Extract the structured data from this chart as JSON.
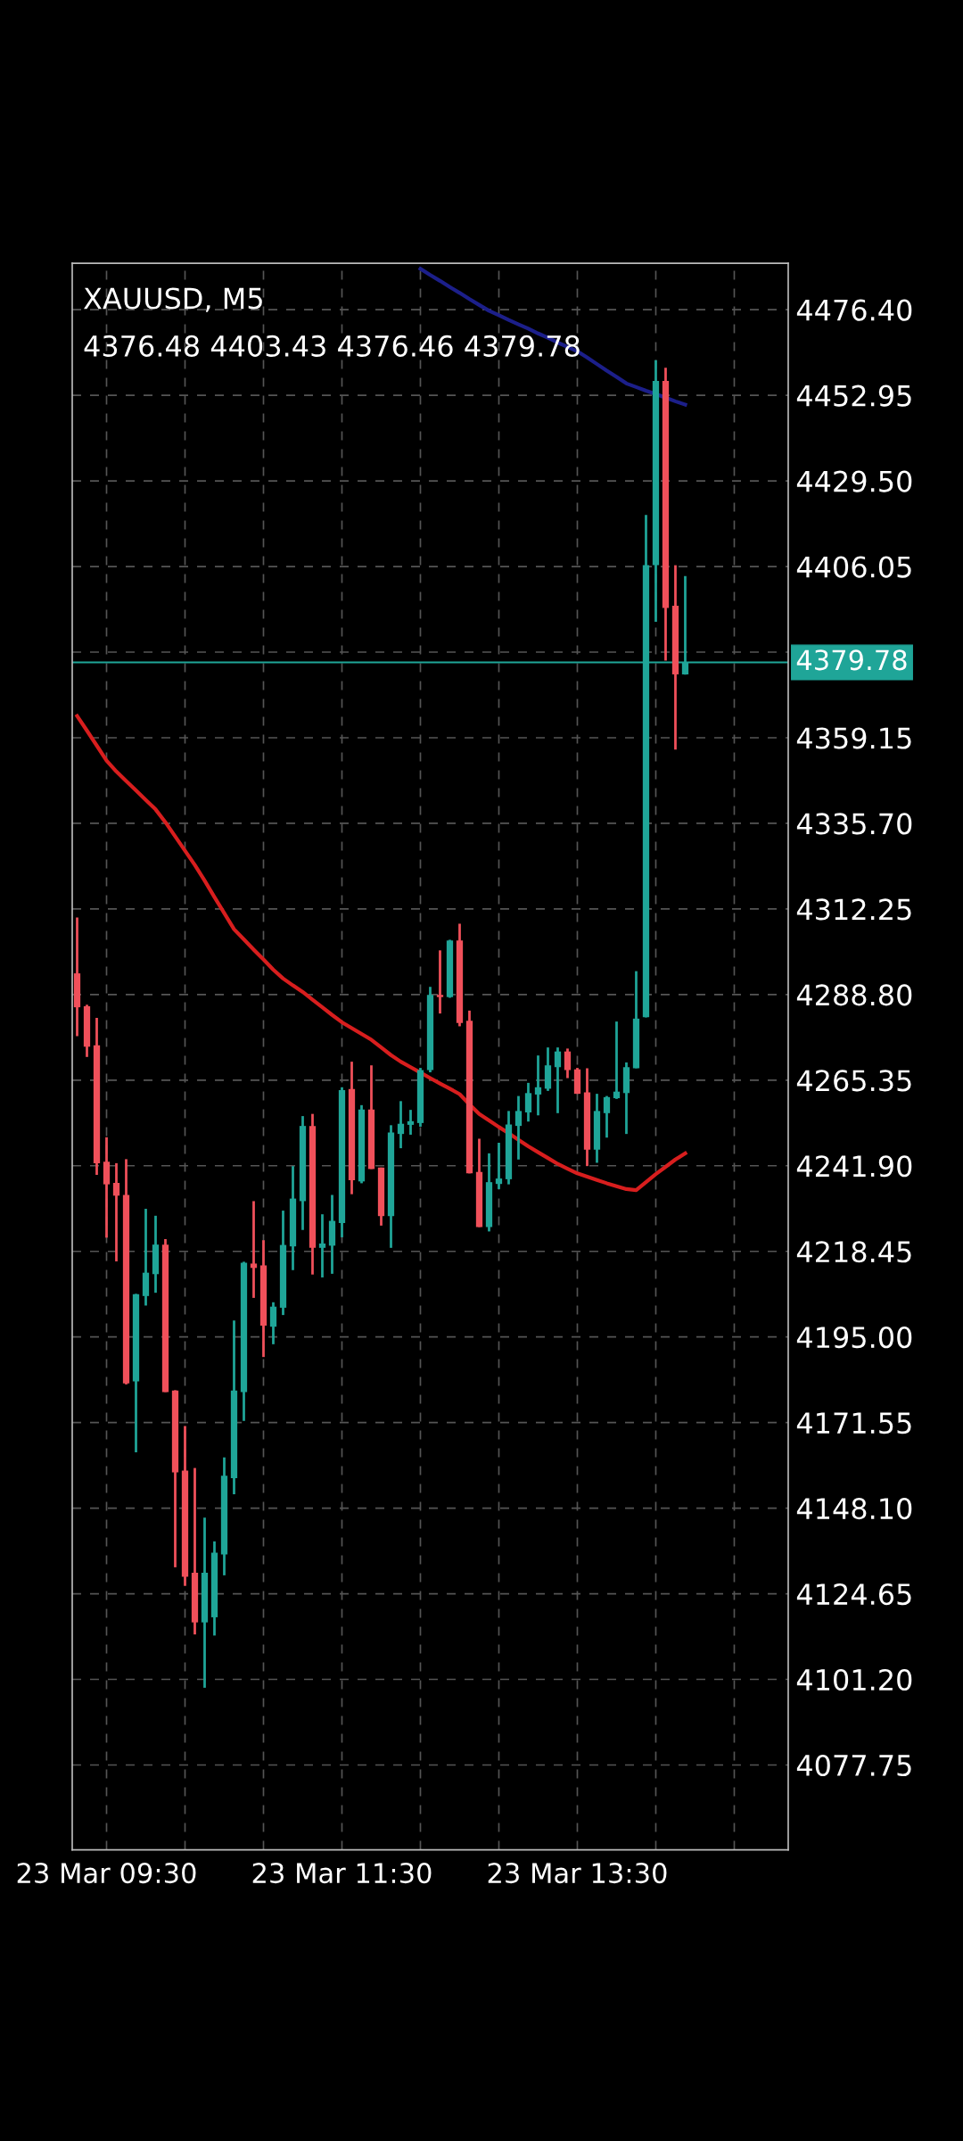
{
  "chart_data": {
    "type": "candlestick",
    "title": "XAUUSD, M5",
    "subtitle": "4376.48 4403.43 4376.46 4379.78",
    "categories": [
      null,
      null,
      null,
      "23 Mar 09:30",
      null,
      null,
      null,
      null,
      null,
      null,
      null,
      null,
      null,
      null,
      null,
      null,
      null,
      null,
      null,
      null,
      null,
      null,
      null,
      null,
      null,
      null,
      null,
      "23 Mar 11:30",
      null,
      null,
      null,
      null,
      null,
      null,
      null,
      null,
      null,
      null,
      null,
      null,
      null,
      null,
      null,
      null,
      null,
      null,
      null,
      null,
      null,
      null,
      null,
      "23 Mar 13:30",
      null,
      null,
      null,
      null,
      null,
      null,
      null,
      null,
      null,
      null,
      null,
      null,
      null,
      null,
      null,
      null,
      null,
      null,
      null,
      null,
      null
    ],
    "ohlc": [
      [
        4294.6,
        4309.9,
        4277.4,
        4285.3
      ],
      [
        4285.6,
        4286.0,
        4271.7,
        4274.5
      ],
      [
        4274.9,
        4282.4,
        4239.4,
        4242.6
      ],
      [
        4243.0,
        4249.7,
        4222.2,
        4236.8
      ],
      [
        4237.2,
        4242.6,
        4215.7,
        4233.7
      ],
      [
        4233.9,
        4243.7,
        4182.0,
        4182.3
      ],
      [
        4182.8,
        4206.8,
        4163.4,
        4206.7
      ],
      [
        4206.2,
        4230.1,
        4203.6,
        4212.6
      ],
      [
        4212.2,
        4228.2,
        4207.1,
        4220.3
      ],
      [
        4220.3,
        4221.8,
        4179.9,
        4179.9
      ],
      [
        4180.3,
        4180.4,
        4131.9,
        4157.9
      ],
      [
        4158.4,
        4170.6,
        4126.8,
        4129.3
      ],
      [
        4130.4,
        4159.1,
        4113.5,
        4116.8
      ],
      [
        4116.8,
        4145.5,
        4098.9,
        4130.4
      ],
      [
        4118.2,
        4139.0,
        4113.2,
        4135.9
      ],
      [
        4135.4,
        4162.0,
        4129.7,
        4157.0
      ],
      [
        4156.3,
        4199.5,
        4151.9,
        4180.3
      ],
      [
        4179.9,
        4215.6,
        4172.0,
        4215.3
      ],
      [
        4215.1,
        4232.2,
        4205.7,
        4213.9
      ],
      [
        4214.6,
        4221.5,
        4189.5,
        4198.1
      ],
      [
        4197.8,
        4204.5,
        4193.0,
        4203.3
      ],
      [
        4203.0,
        4229.6,
        4201.0,
        4220.2
      ],
      [
        4219.8,
        4241.8,
        4213.3,
        4232.9
      ],
      [
        4232.2,
        4255.5,
        4224.3,
        4252.8
      ],
      [
        4252.8,
        4256.1,
        4212.1,
        4219.4
      ],
      [
        4219.4,
        4228.6,
        4211.3,
        4220.6
      ],
      [
        4220.0,
        4233.9,
        4212.3,
        4226.8
      ],
      [
        4226.2,
        4263.4,
        4222.3,
        4262.6
      ],
      [
        4262.9,
        4270.4,
        4234.1,
        4237.9
      ],
      [
        4237.6,
        4258.5,
        4237.1,
        4257.3
      ],
      [
        4257.3,
        4269.4,
        4241.0,
        4241.0
      ],
      [
        4241.4,
        4241.4,
        4225.5,
        4228.1
      ],
      [
        4228.1,
        4253.0,
        4219.4,
        4251.0
      ],
      [
        4250.6,
        4259.6,
        4246.7,
        4253.4
      ],
      [
        4253.1,
        4257.2,
        4250.4,
        4254.1
      ],
      [
        4253.6,
        4268.7,
        4252.6,
        4268.1
      ],
      [
        4268.1,
        4290.9,
        4267.5,
        4288.7
      ],
      [
        4288.7,
        4300.9,
        4283.6,
        4288.1
      ],
      [
        4288.1,
        4303.8,
        4287.9,
        4303.6
      ],
      [
        4303.6,
        4308.2,
        4280.1,
        4281.0
      ],
      [
        4281.6,
        4284.4,
        4239.8,
        4239.8
      ],
      [
        4240.2,
        4249.3,
        4225.1,
        4225.1
      ],
      [
        4225.1,
        4245.3,
        4223.9,
        4237.4
      ],
      [
        4236.9,
        4248.2,
        4235.5,
        4238.4
      ],
      [
        4238.2,
        4256.9,
        4236.8,
        4253.2
      ],
      [
        4252.8,
        4261.0,
        4243.6,
        4256.9
      ],
      [
        4256.5,
        4264.6,
        4254.0,
        4261.8
      ],
      [
        4261.4,
        4272.1,
        4255.7,
        4263.4
      ],
      [
        4263.0,
        4274.3,
        4262.4,
        4269.4
      ],
      [
        4268.9,
        4274.3,
        4256.3,
        4273.2
      ],
      [
        4273.2,
        4274.0,
        4265.9,
        4268.1
      ],
      [
        4268.3,
        4268.7,
        4261.6,
        4261.6
      ],
      [
        4262.0,
        4268.6,
        4241.8,
        4246.3
      ],
      [
        4246.3,
        4261.6,
        4242.7,
        4256.9
      ],
      [
        4256.3,
        4261.0,
        4249.6,
        4260.7
      ],
      [
        4260.4,
        4281.4,
        4260.2,
        4262.2
      ],
      [
        4261.8,
        4270.2,
        4250.6,
        4268.9
      ],
      [
        4268.6,
        4295.2,
        4268.6,
        4282.2
      ],
      [
        4282.6,
        4420.2,
        4282.5,
        4406.4
      ],
      [
        4406.4,
        4462.6,
        4390.9,
        4456.9
      ],
      [
        4456.9,
        4460.5,
        4380.3,
        4394.7
      ],
      [
        4395.3,
        4406.4,
        4355.9,
        4376.5
      ],
      [
        4376.48,
        4403.43,
        4376.46,
        4379.78
      ],
      null,
      null,
      null,
      null,
      null,
      null,
      null,
      null,
      null,
      null
    ],
    "colors": [
      "#f0505a",
      "#f0505a",
      "#f0505a",
      "#f0505a",
      "#f0505a",
      "#f0505a",
      "#1fa598",
      "#1fa598",
      "#1fa598",
      "#f0505a",
      "#f0505a",
      "#f0505a",
      "#f0505a",
      "#1fa598",
      "#1fa598",
      "#1fa598",
      "#1fa598",
      "#1fa598",
      "#f0505a",
      "#f0505a",
      "#1fa598",
      "#1fa598",
      "#1fa598",
      "#1fa598",
      "#f0505a",
      "#1fa598",
      "#1fa598",
      "#1fa598",
      "#f0505a",
      "#1fa598",
      "#f0505a",
      "#f0505a",
      "#1fa598",
      "#1fa598",
      "#1fa598",
      "#1fa598",
      "#1fa598",
      "#f0505a",
      "#1fa598",
      "#f0505a",
      "#f0505a",
      "#f0505a",
      "#1fa598",
      "#1fa598",
      "#1fa598",
      "#1fa598",
      "#1fa598",
      "#1fa598",
      "#1fa598",
      "#1fa598",
      "#f0505a",
      "#f0505a",
      "#f0505a",
      "#1fa598",
      "#1fa598",
      "#1fa598",
      "#1fa598",
      "#1fa598",
      "#1fa598",
      "#1fa598",
      "#f0505a",
      "#f0505a",
      "#1fa598",
      null,
      null,
      null,
      null,
      null,
      null,
      null,
      null,
      null,
      null
    ],
    "series": [
      {
        "type": "line",
        "color": "#d81e1e",
        "values": [
          4365.1,
          4361.1,
          4357.0,
          4352.9,
          4349.9,
          4347.3,
          4344.7,
          4342.1,
          4339.5,
          4336.0,
          4332.1,
          4328.2,
          4324.3,
          4320.0,
          4315.5,
          4311.1,
          4306.7,
          4303.9,
          4301.1,
          4298.4,
          4295.6,
          4293.2,
          4291.3,
          4289.5,
          4287.4,
          4285.3,
          4283.2,
          4281.2,
          4279.6,
          4278.0,
          4276.4,
          4274.3,
          4272.2,
          4270.4,
          4268.9,
          4267.4,
          4265.9,
          4264.4,
          4263.0,
          4261.5,
          4258.7,
          4256.1,
          4254.3,
          4252.5,
          4250.8,
          4249.0,
          4247.2,
          4245.6,
          4244.0,
          4242.4,
          4241.1,
          4239.8,
          4238.9,
          4238.0,
          4237.1,
          4236.3,
          4235.5,
          4235.2,
          4237.4,
          4239.6,
          4241.6,
          4243.6,
          4245.3,
          null,
          null,
          null,
          null,
          null,
          null,
          null,
          null,
          null,
          null
        ]
      },
      {
        "type": "line",
        "color": "#1c1f8a",
        "values": [
          null,
          null,
          null,
          null,
          null,
          null,
          null,
          null,
          null,
          null,
          null,
          null,
          null,
          null,
          null,
          null,
          null,
          null,
          null,
          null,
          null,
          null,
          null,
          null,
          null,
          null,
          null,
          null,
          null,
          null,
          null,
          null,
          null,
          null,
          null,
          4487.6,
          4485.9,
          4484.3,
          4482.6,
          4481.0,
          4479.3,
          4477.7,
          4476.1,
          4474.9,
          4473.6,
          4472.4,
          4471.2,
          4469.9,
          4468.7,
          4467.4,
          4466.2,
          4465.0,
          4463.3,
          4461.5,
          4459.7,
          4458.0,
          4456.2,
          4455.2,
          4454.2,
          4453.3,
          4452.3,
          4451.3,
          4450.4,
          null,
          null,
          null,
          null,
          null,
          null,
          null,
          null,
          null,
          null
        ]
      }
    ],
    "ref_lines": [
      {
        "axis": "y",
        "value": 4379.78,
        "label": "4379.78",
        "color": "#1fa598"
      }
    ],
    "ylim": [
      4054.5,
      4489.1
    ],
    "yticks": [
      {
        "value": 4476.4,
        "label": "4476.40"
      },
      4452.95,
      {
        "value": 4429.5,
        "label": "4429.50"
      },
      4406.05,
      {
        "value": 4382.6,
        "label": null
      },
      4359.15,
      {
        "value": 4335.7,
        "label": "4335.70"
      },
      4312.25,
      {
        "value": 4288.8,
        "label": "4288.80"
      },
      4265.35,
      {
        "value": 4241.9,
        "label": "4241.90"
      },
      4218.45,
      {
        "value": 4195.0,
        "label": "4195.00"
      },
      4171.55,
      {
        "value": 4148.1,
        "label": "4148.10"
      },
      4124.65,
      {
        "value": 4101.2,
        "label": "4101.20"
      },
      4077.75
    ],
    "grid": true,
    "legend": false
  }
}
